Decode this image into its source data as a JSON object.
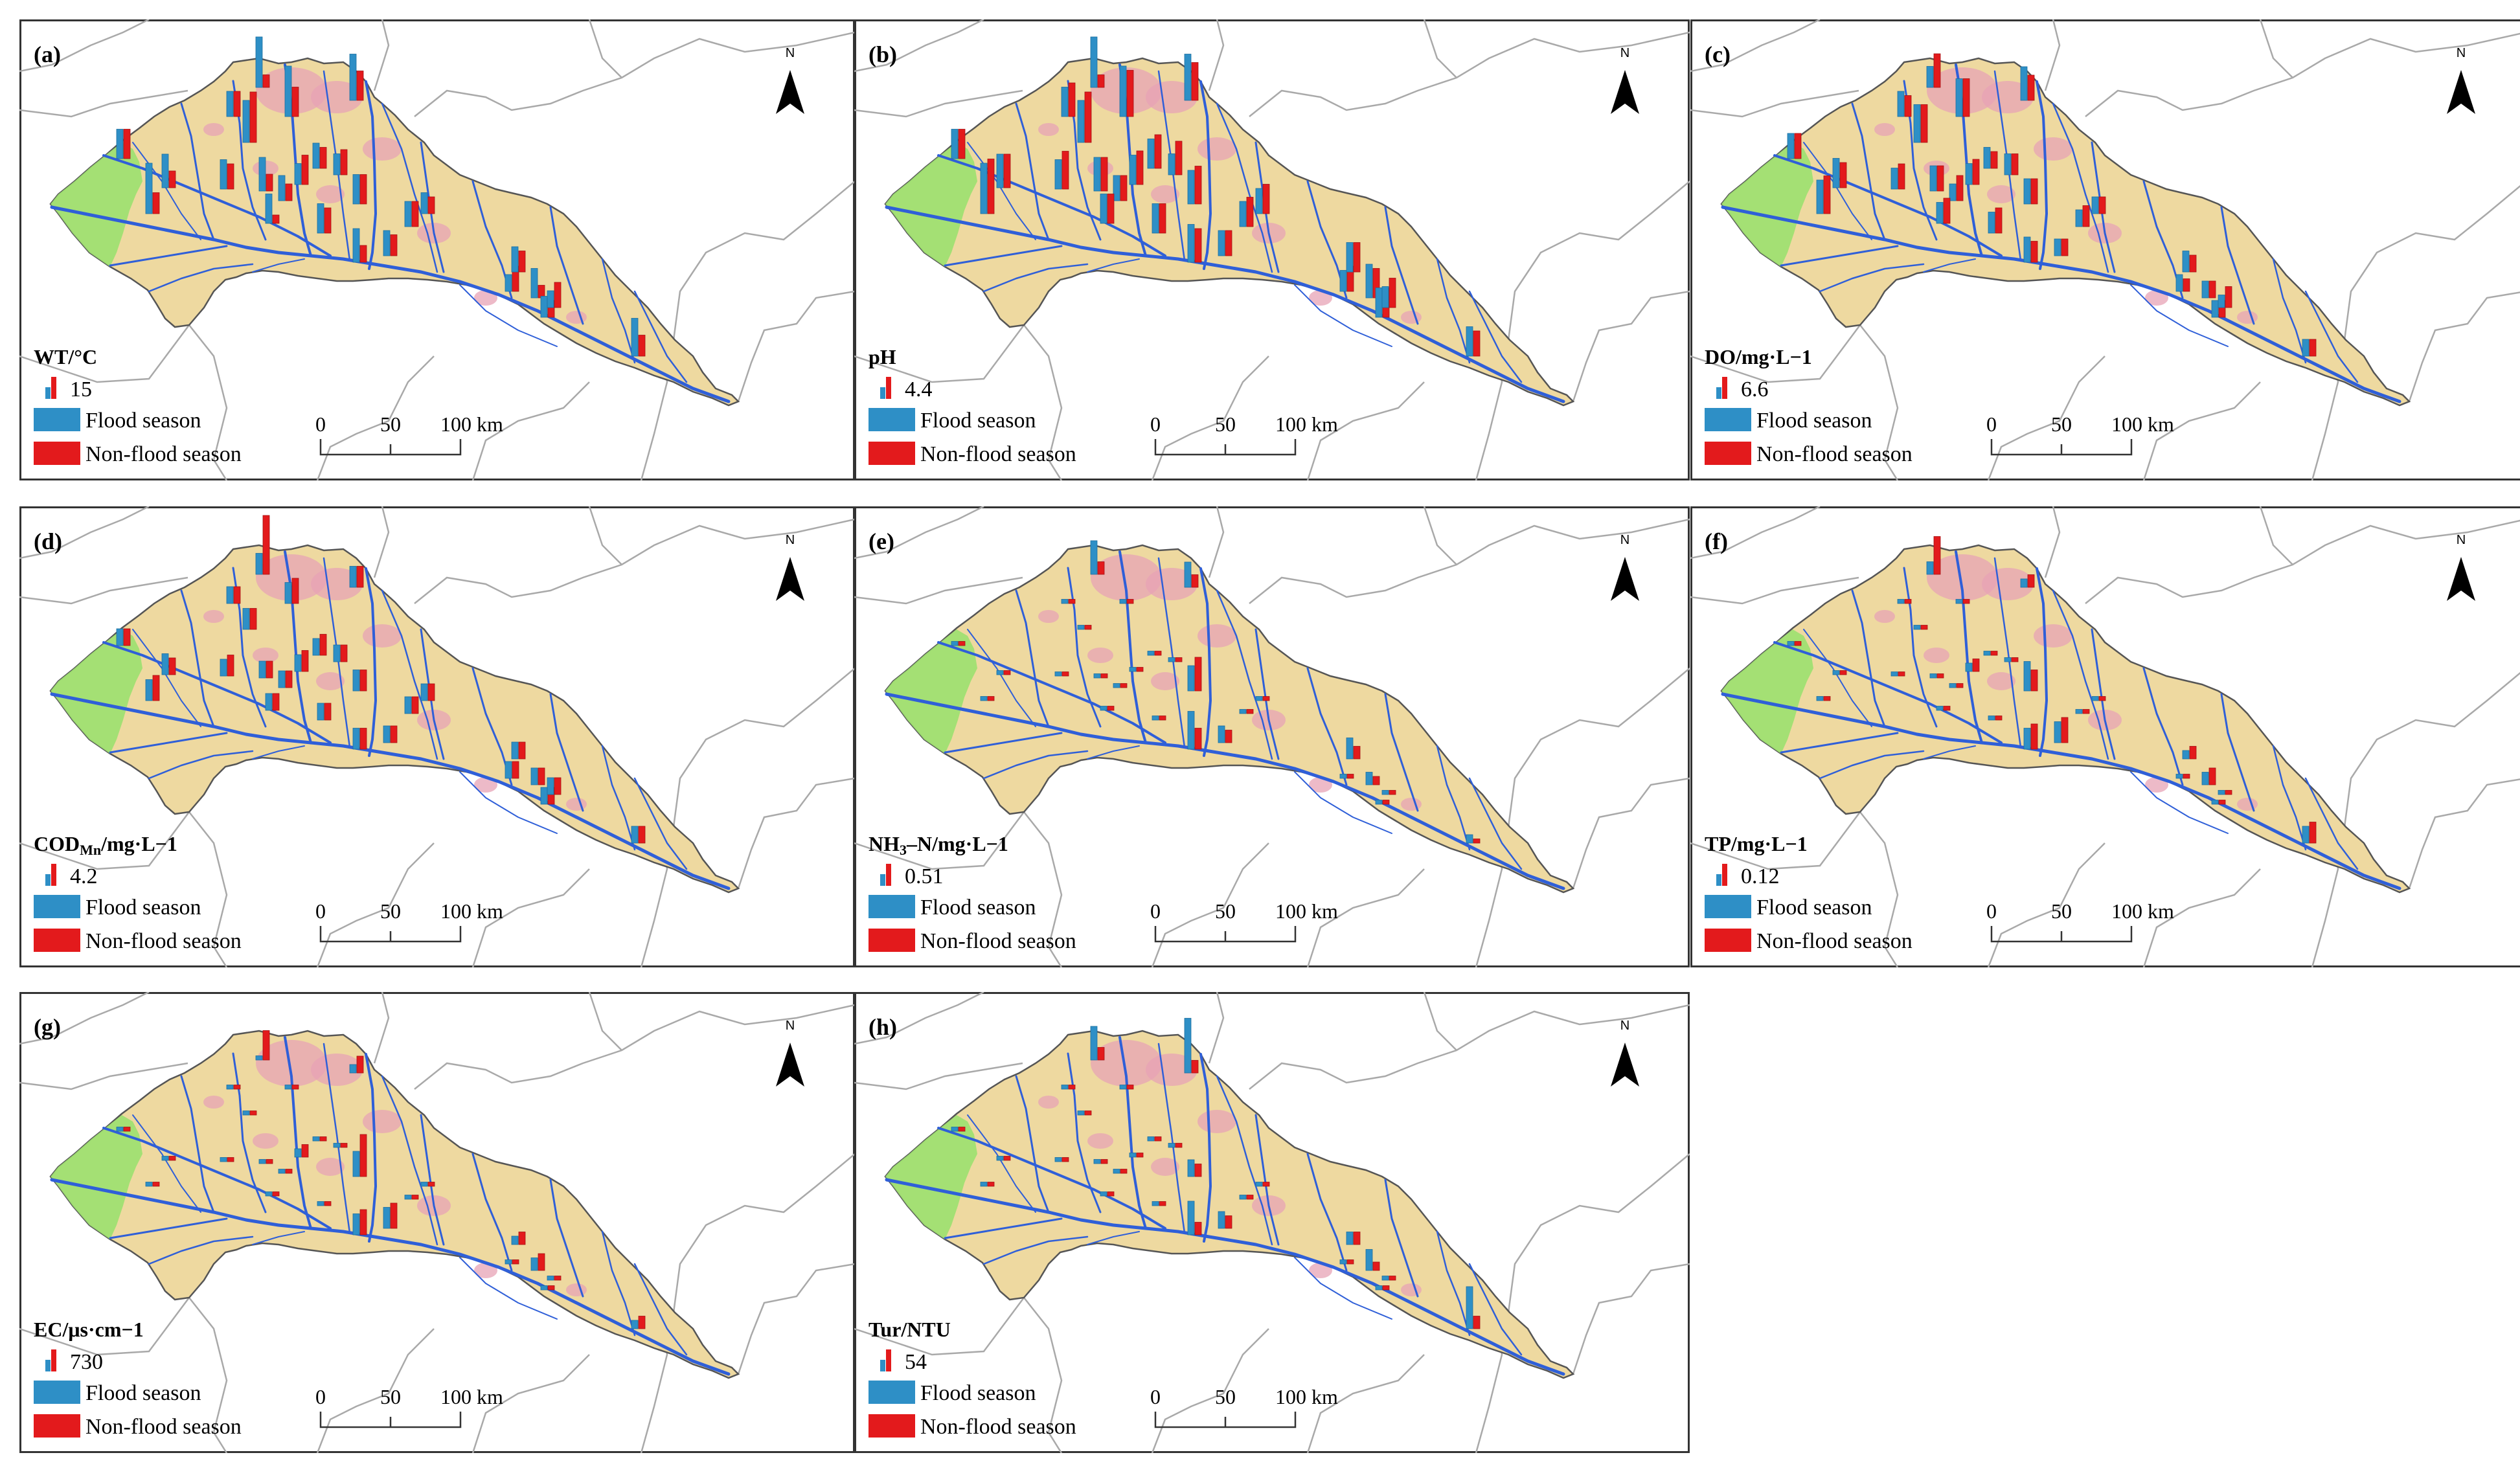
{
  "colors": {
    "flood": "#2e8fc6",
    "non_flood": "#e31a1c",
    "basin_fill": "#eed9a0",
    "lowland_fill": "#9be06f",
    "river": "#2f5fd8",
    "boundary": "#a9a9a9",
    "frame": "#333333"
  },
  "legend": {
    "flood_label": "Flood season",
    "non_flood_label": "Non-flood season"
  },
  "scale_bar": {
    "t0": "0",
    "t1": "50",
    "t2": "100 km"
  },
  "north_label": "N",
  "panels": [
    {
      "id": "a",
      "label": "(a)",
      "var_main": "WT/°C",
      "var_sub": "",
      "var_tail": "",
      "ref_value": "15",
      "bars": [
        [
          7,
          7
        ],
        [
          8,
          4
        ],
        [
          12,
          5
        ],
        [
          6,
          6
        ],
        [
          10,
          12
        ],
        [
          12,
          3
        ],
        [
          7,
          6
        ],
        [
          8,
          4
        ],
        [
          12,
          7
        ],
        [
          6,
          4
        ],
        [
          11,
          7
        ],
        [
          5,
          6
        ],
        [
          6,
          5
        ],
        [
          5,
          7
        ],
        [
          7,
          7
        ],
        [
          7,
          2
        ],
        [
          7,
          6
        ],
        [
          8,
          4
        ],
        [
          6,
          6
        ],
        [
          5,
          4
        ],
        [
          6,
          5
        ],
        [
          4,
          6
        ],
        [
          6,
          5
        ],
        [
          7,
          3
        ],
        [
          5,
          4
        ],
        [
          4,
          6
        ],
        [
          9,
          5
        ]
      ]
    },
    {
      "id": "b",
      "label": "(b)",
      "var_main": "pH",
      "var_sub": "",
      "var_tail": "",
      "ref_value": "4.4",
      "bars": [
        [
          7,
          7
        ],
        [
          8,
          8
        ],
        [
          12,
          13
        ],
        [
          7,
          8
        ],
        [
          10,
          12
        ],
        [
          12,
          3
        ],
        [
          7,
          9
        ],
        [
          8,
          8
        ],
        [
          12,
          11
        ],
        [
          6,
          6
        ],
        [
          11,
          9
        ],
        [
          5,
          8
        ],
        [
          7,
          8
        ],
        [
          7,
          8
        ],
        [
          8,
          9
        ],
        [
          7,
          7
        ],
        [
          7,
          7
        ],
        [
          9,
          8
        ],
        [
          6,
          7
        ],
        [
          6,
          7
        ],
        [
          6,
          6
        ],
        [
          5,
          6
        ],
        [
          7,
          7
        ],
        [
          8,
          7
        ],
        [
          7,
          7
        ],
        [
          5,
          7
        ],
        [
          7,
          6
        ]
      ]
    },
    {
      "id": "c",
      "label": "(c)",
      "var_main": "DO/mg·L",
      "var_sub": "",
      "var_tail": "−1",
      "ref_value": "6.6",
      "bars": [
        [
          6,
          6
        ],
        [
          7,
          6
        ],
        [
          8,
          9
        ],
        [
          6,
          5
        ],
        [
          9,
          9
        ],
        [
          5,
          8
        ],
        [
          5,
          6
        ],
        [
          6,
          6
        ],
        [
          9,
          9
        ],
        [
          4,
          6
        ],
        [
          8,
          6
        ],
        [
          5,
          5
        ],
        [
          5,
          4
        ],
        [
          5,
          6
        ],
        [
          6,
          6
        ],
        [
          5,
          6
        ],
        [
          5,
          6
        ],
        [
          6,
          5
        ],
        [
          4,
          5
        ],
        [
          4,
          4
        ],
        [
          4,
          4
        ],
        [
          4,
          3
        ],
        [
          5,
          4
        ],
        [
          4,
          4
        ],
        [
          4,
          4
        ],
        [
          3,
          5
        ],
        [
          4,
          4
        ]
      ]
    },
    {
      "id": "d",
      "label": "(d)",
      "var_main": "COD",
      "var_sub": "Mn",
      "var_tail": "/mg·L−1",
      "ref_value": "4.2",
      "bars": [
        [
          4,
          4
        ],
        [
          5,
          4
        ],
        [
          5,
          6
        ],
        [
          4,
          4
        ],
        [
          5,
          5
        ],
        [
          5,
          14
        ],
        [
          4,
          5
        ],
        [
          4,
          4
        ],
        [
          5,
          6
        ],
        [
          4,
          4
        ],
        [
          5,
          5
        ],
        [
          4,
          4
        ],
        [
          4,
          5
        ],
        [
          4,
          5
        ],
        [
          5,
          5
        ],
        [
          4,
          4
        ],
        [
          4,
          4
        ],
        [
          5,
          5
        ],
        [
          4,
          4
        ],
        [
          4,
          4
        ],
        [
          4,
          4
        ],
        [
          4,
          4
        ],
        [
          4,
          4
        ],
        [
          4,
          4
        ],
        [
          4,
          4
        ],
        [
          4,
          4
        ],
        [
          4,
          4
        ]
      ]
    },
    {
      "id": "e",
      "label": "(e)",
      "var_main": "NH",
      "var_sub": "3",
      "var_tail": "–N/mg·L−1",
      "ref_value": "0.51",
      "bars": [
        [
          1,
          1
        ],
        [
          1,
          1
        ],
        [
          1,
          1
        ],
        [
          1,
          1
        ],
        [
          1,
          1
        ],
        [
          8,
          3
        ],
        [
          1,
          1
        ],
        [
          1,
          1
        ],
        [
          1,
          1
        ],
        [
          1,
          1
        ],
        [
          6,
          3
        ],
        [
          1,
          1
        ],
        [
          1,
          1
        ],
        [
          1,
          1
        ],
        [
          6,
          8
        ],
        [
          1,
          1
        ],
        [
          1,
          1
        ],
        [
          9,
          5
        ],
        [
          1,
          1
        ],
        [
          1,
          1
        ],
        [
          4,
          3
        ],
        [
          1,
          1
        ],
        [
          5,
          3
        ],
        [
          3,
          2
        ],
        [
          1,
          1
        ],
        [
          1,
          1
        ],
        [
          2,
          1
        ]
      ]
    },
    {
      "id": "f",
      "label": "(f)",
      "var_main": "TP/mg·L",
      "var_sub": "",
      "var_tail": "−1",
      "ref_value": "0.12",
      "bars": [
        [
          1,
          1
        ],
        [
          1,
          1
        ],
        [
          1,
          1
        ],
        [
          1,
          1
        ],
        [
          1,
          1
        ],
        [
          3,
          9
        ],
        [
          1,
          1
        ],
        [
          1,
          1
        ],
        [
          1,
          1
        ],
        [
          1,
          1
        ],
        [
          2,
          3
        ],
        [
          1,
          1
        ],
        [
          1,
          1
        ],
        [
          2,
          3
        ],
        [
          7,
          5
        ],
        [
          1,
          1
        ],
        [
          1,
          1
        ],
        [
          5,
          6
        ],
        [
          1,
          1
        ],
        [
          1,
          1
        ],
        [
          5,
          6
        ],
        [
          1,
          1
        ],
        [
          2,
          3
        ],
        [
          3,
          4
        ],
        [
          1,
          1
        ],
        [
          1,
          1
        ],
        [
          4,
          5
        ]
      ]
    },
    {
      "id": "g",
      "label": "(g)",
      "var_main": "EC/μs·cm",
      "var_sub": "",
      "var_tail": "−1",
      "ref_value": "730",
      "bars": [
        [
          1,
          1
        ],
        [
          1,
          1
        ],
        [
          1,
          1
        ],
        [
          1,
          1
        ],
        [
          1,
          1
        ],
        [
          1,
          7
        ],
        [
          1,
          1
        ],
        [
          1,
          1
        ],
        [
          1,
          1
        ],
        [
          1,
          1
        ],
        [
          2,
          4
        ],
        [
          1,
          1
        ],
        [
          1,
          1
        ],
        [
          2,
          3
        ],
        [
          6,
          10
        ],
        [
          1,
          1
        ],
        [
          1,
          1
        ],
        [
          5,
          6
        ],
        [
          1,
          1
        ],
        [
          1,
          1
        ],
        [
          5,
          6
        ],
        [
          1,
          1
        ],
        [
          2,
          3
        ],
        [
          3,
          4
        ],
        [
          1,
          1
        ],
        [
          1,
          1
        ],
        [
          2,
          3
        ]
      ]
    },
    {
      "id": "h",
      "label": "(h)",
      "var_main": "Tur/NTU",
      "var_sub": "",
      "var_tail": "",
      "ref_value": "54",
      "bars": [
        [
          1,
          1
        ],
        [
          1,
          1
        ],
        [
          1,
          1
        ],
        [
          1,
          1
        ],
        [
          1,
          1
        ],
        [
          8,
          3
        ],
        [
          1,
          1
        ],
        [
          1,
          1
        ],
        [
          1,
          1
        ],
        [
          1,
          1
        ],
        [
          13,
          3
        ],
        [
          1,
          1
        ],
        [
          1,
          1
        ],
        [
          1,
          1
        ],
        [
          4,
          3
        ],
        [
          1,
          1
        ],
        [
          1,
          1
        ],
        [
          8,
          3
        ],
        [
          1,
          1
        ],
        [
          1,
          1
        ],
        [
          4,
          3
        ],
        [
          1,
          1
        ],
        [
          3,
          3
        ],
        [
          5,
          2
        ],
        [
          1,
          1
        ],
        [
          1,
          1
        ],
        [
          10,
          3
        ]
      ]
    }
  ]
}
